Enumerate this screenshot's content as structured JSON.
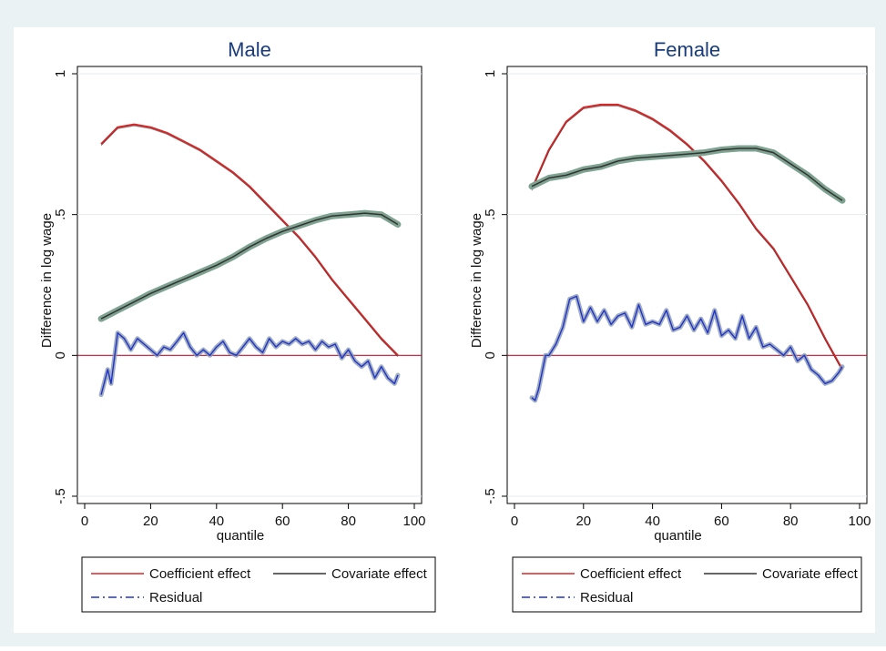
{
  "chart_data": [
    {
      "type": "line",
      "title": "Male",
      "xlabel": "quantile",
      "ylabel": "Difference in log wage",
      "xlim": [
        0,
        100
      ],
      "ylim": [
        -0.5,
        1
      ],
      "xticks": [
        0,
        20,
        40,
        60,
        80,
        100
      ],
      "xtick_labels": [
        "0",
        "20",
        "40",
        "60",
        "80",
        "100"
      ],
      "yticks": [
        -0.5,
        0,
        0.5,
        1
      ],
      "ytick_labels": [
        "-.5",
        "0",
        ".5",
        "1"
      ],
      "reference_line": {
        "y": 0,
        "color": "#c8102e"
      },
      "series": [
        {
          "name": "Coefficient effect",
          "color": "#d62728",
          "style": "solid",
          "x": [
            5,
            10,
            15,
            20,
            25,
            30,
            35,
            40,
            45,
            50,
            55,
            60,
            65,
            70,
            75,
            80,
            85,
            90,
            95
          ],
          "y": [
            0.75,
            0.81,
            0.82,
            0.81,
            0.79,
            0.76,
            0.73,
            0.69,
            0.65,
            0.6,
            0.54,
            0.48,
            0.42,
            0.35,
            0.27,
            0.2,
            0.13,
            0.06,
            0.0
          ]
        },
        {
          "name": "Covariate effect",
          "color": "#333333",
          "band_color": "#7fa391",
          "style": "solid",
          "x": [
            5,
            10,
            15,
            20,
            25,
            30,
            35,
            40,
            45,
            50,
            55,
            60,
            65,
            70,
            75,
            80,
            85,
            90,
            95
          ],
          "y": [
            0.13,
            0.16,
            0.19,
            0.22,
            0.245,
            0.27,
            0.295,
            0.32,
            0.35,
            0.385,
            0.415,
            0.44,
            0.46,
            0.48,
            0.495,
            0.5,
            0.505,
            0.5,
            0.465
          ]
        },
        {
          "name": "Residual",
          "color": "#2233cc",
          "style": "dashdot",
          "x": [
            5,
            7,
            8,
            10,
            12,
            14,
            16,
            18,
            20,
            22,
            24,
            26,
            28,
            30,
            32,
            34,
            36,
            38,
            40,
            42,
            44,
            46,
            48,
            50,
            52,
            54,
            56,
            58,
            60,
            62,
            64,
            66,
            68,
            70,
            72,
            74,
            76,
            78,
            80,
            82,
            84,
            86,
            88,
            90,
            92,
            94,
            95
          ],
          "y": [
            -0.14,
            -0.05,
            -0.1,
            0.08,
            0.06,
            0.02,
            0.06,
            0.04,
            0.02,
            0.0,
            0.03,
            0.02,
            0.05,
            0.08,
            0.03,
            0.0,
            0.02,
            0.0,
            0.03,
            0.05,
            0.01,
            0.0,
            0.03,
            0.06,
            0.03,
            0.01,
            0.06,
            0.03,
            0.05,
            0.04,
            0.06,
            0.04,
            0.05,
            0.02,
            0.05,
            0.03,
            0.04,
            -0.01,
            0.02,
            -0.02,
            -0.04,
            -0.02,
            -0.08,
            -0.04,
            -0.08,
            -0.1,
            -0.07
          ]
        }
      ],
      "legend": [
        "Coefficient effect",
        "Covariate effect",
        "Residual"
      ],
      "legend_position": "bottom",
      "grid": "horizontal"
    },
    {
      "type": "line",
      "title": "Female",
      "xlabel": "quantile",
      "ylabel": "Difference in log wage",
      "xlim": [
        0,
        100
      ],
      "ylim": [
        -0.5,
        1
      ],
      "xticks": [
        0,
        20,
        40,
        60,
        80,
        100
      ],
      "xtick_labels": [
        "0",
        "20",
        "40",
        "60",
        "80",
        "100"
      ],
      "yticks": [
        -0.5,
        0,
        0.5,
        1
      ],
      "ytick_labels": [
        "-.5",
        "0",
        ".5",
        "1"
      ],
      "reference_line": {
        "y": 0,
        "color": "#c8102e"
      },
      "series": [
        {
          "name": "Coefficient effect",
          "color": "#d62728",
          "style": "solid",
          "x": [
            5,
            10,
            15,
            20,
            25,
            30,
            35,
            40,
            45,
            50,
            55,
            60,
            65,
            70,
            75,
            80,
            85,
            90,
            95
          ],
          "y": [
            0.59,
            0.73,
            0.83,
            0.88,
            0.89,
            0.89,
            0.87,
            0.84,
            0.8,
            0.75,
            0.69,
            0.62,
            0.54,
            0.45,
            0.38,
            0.28,
            0.18,
            0.06,
            -0.05
          ]
        },
        {
          "name": "Covariate effect",
          "color": "#333333",
          "band_color": "#7fa391",
          "style": "solid",
          "x": [
            5,
            10,
            15,
            20,
            25,
            30,
            35,
            40,
            45,
            50,
            55,
            60,
            65,
            70,
            75,
            80,
            85,
            90,
            95
          ],
          "y": [
            0.6,
            0.63,
            0.64,
            0.66,
            0.67,
            0.69,
            0.7,
            0.705,
            0.71,
            0.715,
            0.72,
            0.73,
            0.735,
            0.735,
            0.72,
            0.68,
            0.64,
            0.59,
            0.55
          ]
        },
        {
          "name": "Residual",
          "color": "#2233cc",
          "style": "dashdot",
          "x": [
            5,
            6,
            7,
            8,
            9,
            10,
            11,
            12,
            14,
            16,
            18,
            20,
            22,
            24,
            26,
            28,
            30,
            32,
            34,
            36,
            38,
            40,
            42,
            44,
            46,
            48,
            50,
            52,
            54,
            56,
            58,
            60,
            62,
            64,
            66,
            68,
            70,
            72,
            74,
            76,
            78,
            80,
            82,
            84,
            86,
            88,
            90,
            92,
            94,
            95
          ],
          "y": [
            -0.15,
            -0.16,
            -0.12,
            -0.06,
            0.0,
            0.0,
            0.02,
            0.04,
            0.1,
            0.2,
            0.21,
            0.12,
            0.17,
            0.12,
            0.16,
            0.11,
            0.14,
            0.15,
            0.1,
            0.18,
            0.11,
            0.12,
            0.11,
            0.16,
            0.09,
            0.1,
            0.14,
            0.09,
            0.13,
            0.08,
            0.16,
            0.07,
            0.09,
            0.06,
            0.14,
            0.06,
            0.1,
            0.03,
            0.04,
            0.02,
            0.0,
            0.03,
            -0.02,
            0.0,
            -0.05,
            -0.07,
            -0.1,
            -0.09,
            -0.06,
            -0.04
          ]
        }
      ],
      "legend": [
        "Coefficient effect",
        "Covariate effect",
        "Residual"
      ],
      "legend_position": "bottom",
      "grid": "horizontal"
    }
  ]
}
